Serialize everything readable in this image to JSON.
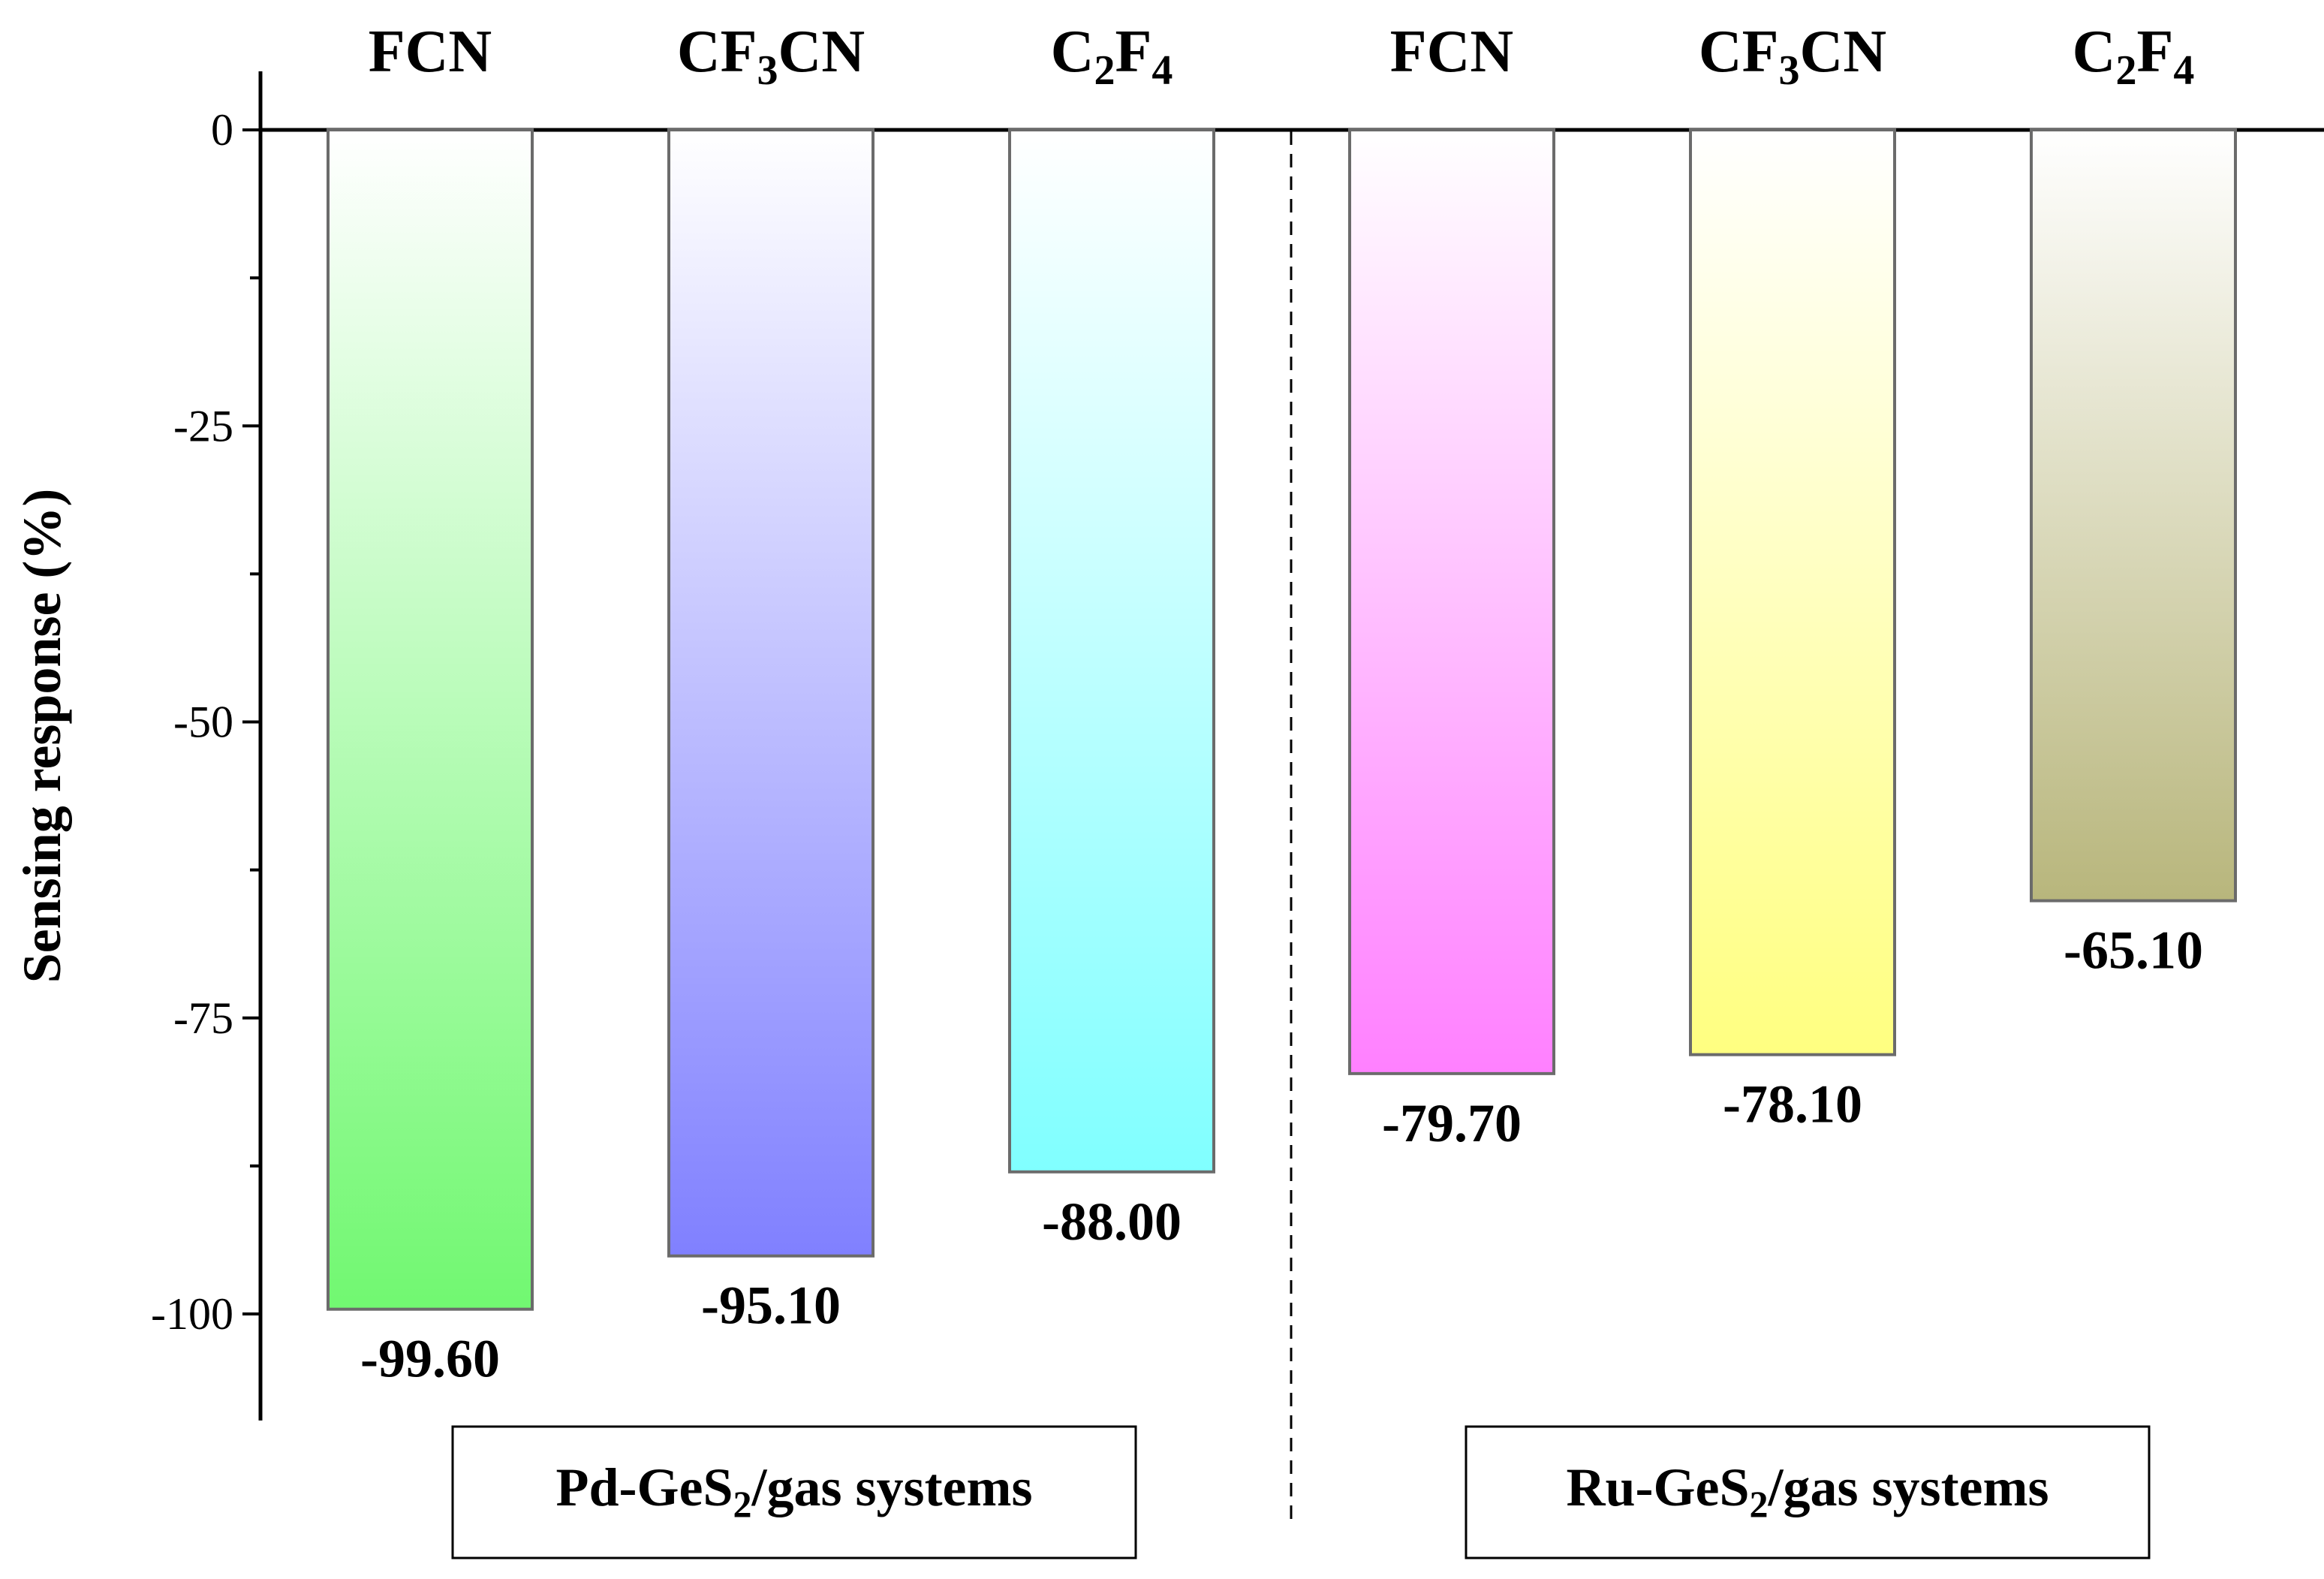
{
  "chart_data": {
    "type": "bar",
    "ylabel": "Sensing response (%)",
    "ylim": [
      -109,
      5
    ],
    "yticks": [
      0,
      -25,
      -50,
      -75,
      -100
    ],
    "ytick_labels": [
      "0",
      "-25",
      "-50",
      "-75",
      "-100"
    ],
    "groups": [
      {
        "label": "Pd-GeS",
        "label_sub": "2",
        "label_tail": "/gas systems"
      },
      {
        "label": "Ru-GeS",
        "label_sub": "2",
        "label_tail": "/gas systems"
      }
    ],
    "bars": [
      {
        "group": 0,
        "cat": "FCN",
        "sub": "",
        "cat_tail": "",
        "value": -99.6,
        "label": "-99.60",
        "color": "#71f871"
      },
      {
        "group": 0,
        "cat": "CF",
        "sub": "3",
        "cat_tail": "CN",
        "value": -95.1,
        "label": "-95.10",
        "color": "#8080ff"
      },
      {
        "group": 0,
        "cat": "C",
        "sub": "2",
        "cat_tail": "F",
        "sub2": "4",
        "value": -88.0,
        "label": "-88.00",
        "color": "#80ffff"
      },
      {
        "group": 1,
        "cat": "FCN",
        "sub": "",
        "cat_tail": "",
        "value": -79.7,
        "label": "-79.70",
        "color": "#ff80ff"
      },
      {
        "group": 1,
        "cat": "CF",
        "sub": "3",
        "cat_tail": "CN",
        "value": -78.1,
        "label": "-78.10",
        "color": "#ffff80"
      },
      {
        "group": 1,
        "cat": "C",
        "sub": "2",
        "cat_tail": "F",
        "sub2": "4",
        "value": -65.1,
        "label": "-65.10",
        "color": "#b8b67c"
      }
    ]
  }
}
